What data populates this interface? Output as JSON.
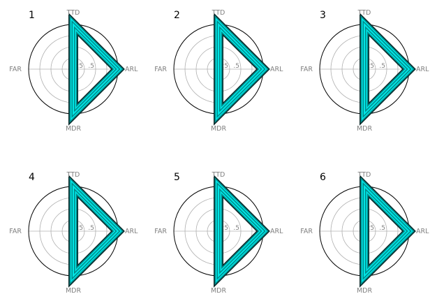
{
  "chart_data": {
    "type": "radar",
    "axes": [
      "TTD",
      "ARL",
      "MDR",
      "FAR"
    ],
    "rlim": [
      0,
      1
    ],
    "radial_ticks": [
      0.25,
      0.5,
      0.75,
      1
    ],
    "radial_tick_labels": [
      ".25",
      ".5",
      "",
      "1"
    ],
    "grid": true,
    "panels": [
      {
        "label": "1",
        "values": [
          1,
          1,
          1,
          0
        ]
      },
      {
        "label": "2",
        "values": [
          1,
          1,
          1,
          0
        ]
      },
      {
        "label": "3",
        "values": [
          1,
          1,
          1,
          0
        ]
      },
      {
        "label": "4",
        "values": [
          1,
          1,
          1,
          0
        ]
      },
      {
        "label": "5",
        "values": [
          1,
          1,
          1,
          0
        ]
      },
      {
        "label": "6",
        "values": [
          1,
          1,
          1,
          0
        ]
      }
    ]
  },
  "colors": {
    "line_dark": "#0a2a2a",
    "line_mid": "#008b8b",
    "line_bright": "#00e5e5",
    "grid": "#b0b0b0",
    "frame": "#000000",
    "text": "#808080"
  }
}
